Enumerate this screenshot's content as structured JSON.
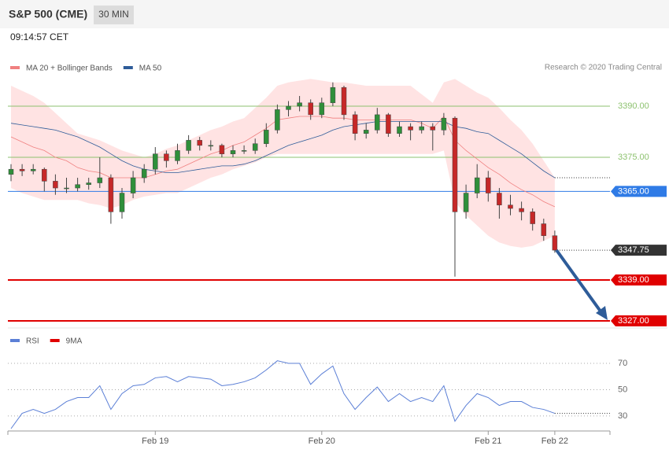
{
  "chart_data": {
    "type": "candlestick",
    "title": "S&P 500 (CME)",
    "timeframe": "30 MIN",
    "timestamp": "09:14:57 CET",
    "credit": "Research © 2020 Trading Central",
    "legend": [
      {
        "name": "MA 20 + Bollinger Bands",
        "color": "#f08080"
      },
      {
        "name": "MA 50",
        "color": "#2e5c99"
      }
    ],
    "categories": [
      null,
      null,
      null,
      null,
      null,
      null,
      null,
      null,
      null,
      null,
      null,
      null,
      null,
      "Feb 19",
      null,
      null,
      null,
      null,
      null,
      null,
      null,
      null,
      null,
      null,
      null,
      null,
      null,
      null,
      "Feb 20",
      null,
      null,
      null,
      null,
      null,
      null,
      null,
      null,
      null,
      null,
      null,
      null,
      null,
      null,
      "Feb 21",
      null,
      null,
      null,
      null,
      null,
      "Feb 22"
    ],
    "candles": [
      [
        3370,
        3373,
        3368,
        3371.5
      ],
      [
        3371.5,
        3373,
        3369.5,
        3371
      ],
      [
        3371,
        3373,
        3370,
        3371.5
      ],
      [
        3371.5,
        3372,
        3365,
        3368
      ],
      [
        3368,
        3370,
        3364,
        3366
      ],
      [
        3366,
        3369,
        3364.5,
        3366
      ],
      [
        3366,
        3369,
        3365,
        3367
      ],
      [
        3367,
        3369,
        3365.5,
        3367.5
      ],
      [
        3367.5,
        3375,
        3366,
        3369
      ],
      [
        3369,
        3370,
        3355.5,
        3359
      ],
      [
        3359,
        3366,
        3357,
        3364.5
      ],
      [
        3364.5,
        3371,
        3363,
        3369
      ],
      [
        3369,
        3373,
        3367.5,
        3371.5
      ],
      [
        3371.5,
        3378,
        3370,
        3376
      ],
      [
        3376,
        3377,
        3372,
        3374
      ],
      [
        3374,
        3379,
        3373,
        3377
      ],
      [
        3377,
        3381.5,
        3376,
        3380
      ],
      [
        3380,
        3381,
        3377,
        3378.5
      ],
      [
        3378.5,
        3380,
        3377,
        3378.5
      ],
      [
        3378.5,
        3379,
        3375,
        3376
      ],
      [
        3376,
        3378.5,
        3375,
        3377
      ],
      [
        3377,
        3378.5,
        3376,
        3377
      ],
      [
        3377,
        3380.5,
        3376,
        3379
      ],
      [
        3379,
        3385,
        3378,
        3383
      ],
      [
        3383,
        3390.5,
        3382,
        3389
      ],
      [
        3389,
        3391.5,
        3387,
        3390
      ],
      [
        3390,
        3393,
        3388.5,
        3391
      ],
      [
        3391,
        3392,
        3386,
        3387.5
      ],
      [
        3387.5,
        3392.5,
        3386.5,
        3391
      ],
      [
        3391,
        3397,
        3390,
        3395.5
      ],
      [
        3395.5,
        3396,
        3386,
        3387.5
      ],
      [
        3387.5,
        3388.5,
        3380,
        3382
      ],
      [
        3382,
        3385,
        3380.5,
        3383
      ],
      [
        3383,
        3389.5,
        3382,
        3387.5
      ],
      [
        3387.5,
        3388,
        3381,
        3382
      ],
      [
        3382,
        3385.5,
        3381,
        3384
      ],
      [
        3384,
        3385,
        3380,
        3383
      ],
      [
        3383,
        3385.5,
        3382,
        3384
      ],
      [
        3384,
        3385,
        3377,
        3383
      ],
      [
        3383,
        3388,
        3381.5,
        3386.5
      ],
      [
        3386.5,
        3387,
        3340,
        3359
      ],
      [
        3359,
        3367,
        3357,
        3364.5
      ],
      [
        3364.5,
        3373,
        3363,
        3369
      ],
      [
        3369,
        3371,
        3362,
        3364.5
      ],
      [
        3364.5,
        3366,
        3357,
        3361
      ],
      [
        3361,
        3364,
        3358,
        3360
      ],
      [
        3360,
        3362,
        3356.5,
        3359
      ],
      [
        3359,
        3360,
        3353.5,
        3355.5
      ],
      [
        3355.5,
        3357,
        3350.5,
        3352
      ],
      [
        3352,
        3353.5,
        3347,
        3347.75
      ]
    ],
    "last_label": "3347.75",
    "bb_upper": [
      3396,
      3394.5,
      3393,
      3391,
      3388,
      3385,
      3382,
      3381,
      3380,
      3378.5,
      3377,
      3376,
      3375,
      3376,
      3377.5,
      3378.5,
      3380,
      3381.5,
      3383,
      3384,
      3385.5,
      3386.5,
      3389.5,
      3392.5,
      3396,
      3397,
      3397.5,
      3398,
      3397.5,
      3397,
      3397,
      3396.5,
      3396,
      3396,
      3396,
      3396,
      3396,
      3393.5,
      3391,
      3397,
      3398,
      3396,
      3394,
      3392.5,
      3389.5,
      3386,
      3383,
      3379,
      3374,
      3369
    ],
    "bb_lower": [
      3366,
      3364.5,
      3363.5,
      3362.5,
      3362.5,
      3362.5,
      3362.5,
      3361.5,
      3361,
      3360,
      3361,
      3362.5,
      3363.5,
      3364,
      3364.5,
      3364.5,
      3366,
      3367.5,
      3369,
      3370,
      3371.5,
      3372.5,
      3373.5,
      3375,
      3376,
      3376,
      3376,
      3376,
      3376,
      3376,
      3376,
      3376,
      3376,
      3376,
      3376,
      3376,
      3376,
      3376,
      3376,
      3377,
      3362,
      3358,
      3355,
      3352,
      3350,
      3349,
      3348.5,
      3349,
      3350.5,
      3352
    ],
    "ma20": [
      3381,
      3379.5,
      3378,
      3377,
      3375,
      3374,
      3372,
      3371,
      3370.5,
      3369,
      3369,
      3369,
      3369,
      3370,
      3371,
      3371.5,
      3373,
      3374.5,
      3376,
      3377,
      3378.5,
      3379.5,
      3381.5,
      3383.5,
      3386,
      3386.5,
      3387,
      3387,
      3387,
      3386.5,
      3386.5,
      3386,
      3386,
      3386,
      3386,
      3386,
      3386,
      3385,
      3383.5,
      3387,
      3380,
      3377,
      3374.5,
      3372,
      3370,
      3367.5,
      3365.5,
      3364,
      3362,
      3360.5
    ],
    "ma50": [
      3385,
      3384.5,
      3384,
      3383.5,
      3383,
      3382,
      3381,
      3379.5,
      3378,
      3376,
      3374,
      3372.5,
      3371.5,
      3371,
      3370.5,
      3370.5,
      3371,
      3371.5,
      3372,
      3372.5,
      3372.5,
      3373,
      3374,
      3375.5,
      3377,
      3378.5,
      3379.5,
      3380.5,
      3381.5,
      3383,
      3384,
      3384.5,
      3385,
      3385.5,
      3385.5,
      3385.5,
      3385.5,
      3385.5,
      3385.5,
      3385.5,
      3384,
      3383.5,
      3382.5,
      3382,
      3380,
      3378,
      3376,
      3373.5,
      3371,
      3369
    ],
    "ylim": [
      3325,
      3400
    ],
    "levels": [
      {
        "value": 3390,
        "label": "3390.00",
        "color": "#8dc26f"
      },
      {
        "value": 3375,
        "label": "3375.00",
        "color": "#8dc26f"
      },
      {
        "value": 3365,
        "label": "3365.00",
        "color": "#2f7be6"
      },
      {
        "value": 3339,
        "label": "3339.00",
        "color": "#e00000"
      },
      {
        "value": 3327,
        "label": "3327.00",
        "color": "#e00000"
      }
    ],
    "rsi": {
      "legend": [
        {
          "name": "RSI",
          "color": "#5b7fd6"
        },
        {
          "name": "9MA",
          "color": "#e00000"
        }
      ],
      "values": [
        20.4,
        32,
        35,
        32,
        35,
        41,
        44,
        44,
        53,
        35,
        47,
        53,
        54,
        59,
        60,
        56,
        60,
        59,
        58,
        53,
        54,
        56,
        59,
        65,
        72,
        70,
        70,
        54,
        62,
        68,
        47,
        35,
        44,
        52,
        41,
        47,
        41,
        44,
        41,
        53,
        26,
        38,
        47,
        44,
        38,
        41,
        41,
        36.5,
        35,
        32
      ],
      "ylim": [
        18,
        76
      ],
      "yticks": [
        70,
        50,
        30
      ]
    }
  }
}
